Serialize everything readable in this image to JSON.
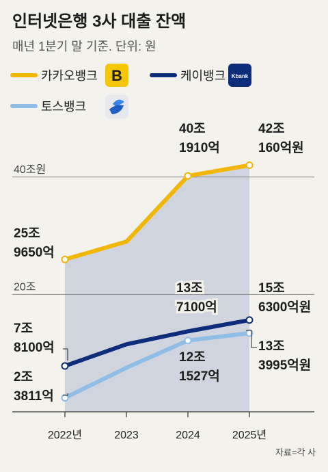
{
  "title": "인터넷은행 3사 대출 잔액",
  "subtitle": "매년 1분기 말 기준. 단위: 원",
  "source": "자료=각 사",
  "icons": {
    "kakao": {
      "name": "kakaobank-logo",
      "bg": "#f5c700",
      "glyph": "B"
    },
    "kbank": {
      "name": "kbank-logo",
      "bg": "#0d2c7a",
      "text": "Kbank"
    },
    "toss": {
      "name": "toss-logo",
      "bg": "#e6e8ee"
    }
  },
  "chart_data": {
    "type": "line",
    "categories": [
      "2022년",
      "2023",
      "2024",
      "2025년"
    ],
    "x_values": [
      2022,
      2023,
      2024,
      2025
    ],
    "unit": "원",
    "gridlines": [
      {
        "value": 40,
        "label": "40조원"
      },
      {
        "value": 20,
        "label": "20조"
      }
    ],
    "ylim": [
      0,
      47
    ],
    "series": [
      {
        "name": "카카오뱅크",
        "color": "#f2b705",
        "values": [
          25.965,
          29,
          40.191,
          42.016
        ],
        "labels": {
          "0": [
            "25조",
            "9650억"
          ],
          "2": [
            "40조",
            "1910억"
          ],
          "3": [
            "42조",
            "160억원"
          ]
        }
      },
      {
        "name": "케이뱅크",
        "color": "#0d2c7a",
        "values": [
          7.81,
          11.5,
          13.71,
          15.63
        ],
        "labels": {
          "0": [
            "7조",
            "8100억"
          ],
          "2": [
            "13조",
            "7100억"
          ],
          "3": [
            "15조",
            "6300억원"
          ]
        }
      },
      {
        "name": "토스뱅크",
        "color": "#8fbde6",
        "values": [
          2.3811,
          7.5,
          12.1527,
          13.3995
        ],
        "labels": {
          "0": [
            "2조",
            "3811억"
          ],
          "2": [
            "12조",
            "1527억"
          ],
          "3": [
            "13조",
            "3995억원"
          ]
        }
      }
    ]
  }
}
